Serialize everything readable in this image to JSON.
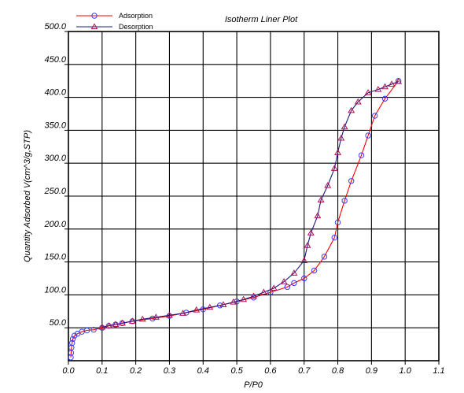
{
  "chart_data": {
    "type": "line",
    "title": "Isotherm Liner Plot",
    "xlabel": "P/P0",
    "ylabel": "Quantity Adsorbed V(cm^3/g,STP)",
    "xlim": [
      0.0,
      1.1
    ],
    "ylim": [
      0.0,
      500.0
    ],
    "x_ticks": [
      "0.0",
      "0.1",
      "0.2",
      "0.3",
      "0.4",
      "0.5",
      "0.6",
      "0.7",
      "0.8",
      "0.9",
      "1.0",
      "1.1"
    ],
    "y_ticks": [
      "50.0",
      "100.0",
      "150.0",
      "200.0",
      "250.0",
      "300.0",
      "350.0",
      "400.0",
      "450.0",
      "500.0"
    ],
    "grid": true,
    "legend_position": "top-left",
    "series": [
      {
        "name": "Adsorption",
        "color": "#ff0000",
        "marker": "circle",
        "marker_color": "#3b3bff",
        "points": [
          [
            0.007,
            5
          ],
          [
            0.008,
            12
          ],
          [
            0.009,
            20
          ],
          [
            0.011,
            27
          ],
          [
            0.013,
            33
          ],
          [
            0.018,
            38
          ],
          [
            0.027,
            41
          ],
          [
            0.04,
            44
          ],
          [
            0.055,
            46
          ],
          [
            0.075,
            47
          ],
          [
            0.1,
            50
          ],
          [
            0.12,
            53
          ],
          [
            0.14,
            55
          ],
          [
            0.16,
            57
          ],
          [
            0.19,
            60
          ],
          [
            0.25,
            64
          ],
          [
            0.3,
            68
          ],
          [
            0.35,
            73
          ],
          [
            0.4,
            78
          ],
          [
            0.45,
            84
          ],
          [
            0.5,
            90
          ],
          [
            0.55,
            96
          ],
          [
            0.6,
            104
          ],
          [
            0.65,
            112
          ],
          [
            0.67,
            118
          ],
          [
            0.7,
            125
          ],
          [
            0.73,
            137
          ],
          [
            0.76,
            158
          ],
          [
            0.79,
            187
          ],
          [
            0.8,
            210
          ],
          [
            0.82,
            243
          ],
          [
            0.84,
            273
          ],
          [
            0.87,
            312
          ],
          [
            0.89,
            342
          ],
          [
            0.91,
            372
          ],
          [
            0.94,
            398
          ],
          [
            0.98,
            425
          ]
        ]
      },
      {
        "name": "Desorption",
        "color": "#1a1a80",
        "marker": "triangle",
        "marker_color": "#b01050",
        "points": [
          [
            0.98,
            424
          ],
          [
            0.96,
            420
          ],
          [
            0.94,
            416
          ],
          [
            0.92,
            412
          ],
          [
            0.89,
            407
          ],
          [
            0.86,
            393
          ],
          [
            0.84,
            380
          ],
          [
            0.82,
            355
          ],
          [
            0.81,
            338
          ],
          [
            0.8,
            316
          ],
          [
            0.79,
            292
          ],
          [
            0.77,
            266
          ],
          [
            0.75,
            244
          ],
          [
            0.74,
            220
          ],
          [
            0.72,
            194
          ],
          [
            0.71,
            175
          ],
          [
            0.7,
            152
          ],
          [
            0.67,
            133
          ],
          [
            0.64,
            120
          ],
          [
            0.61,
            110
          ],
          [
            0.58,
            104
          ],
          [
            0.55,
            98
          ],
          [
            0.52,
            93
          ],
          [
            0.49,
            89
          ],
          [
            0.46,
            85
          ],
          [
            0.42,
            81
          ],
          [
            0.38,
            77
          ],
          [
            0.34,
            72
          ],
          [
            0.3,
            69
          ],
          [
            0.26,
            66
          ],
          [
            0.22,
            63
          ],
          [
            0.19,
            60
          ],
          [
            0.16,
            57
          ],
          [
            0.14,
            55
          ],
          [
            0.12,
            53
          ],
          [
            0.1,
            51
          ]
        ]
      }
    ]
  }
}
